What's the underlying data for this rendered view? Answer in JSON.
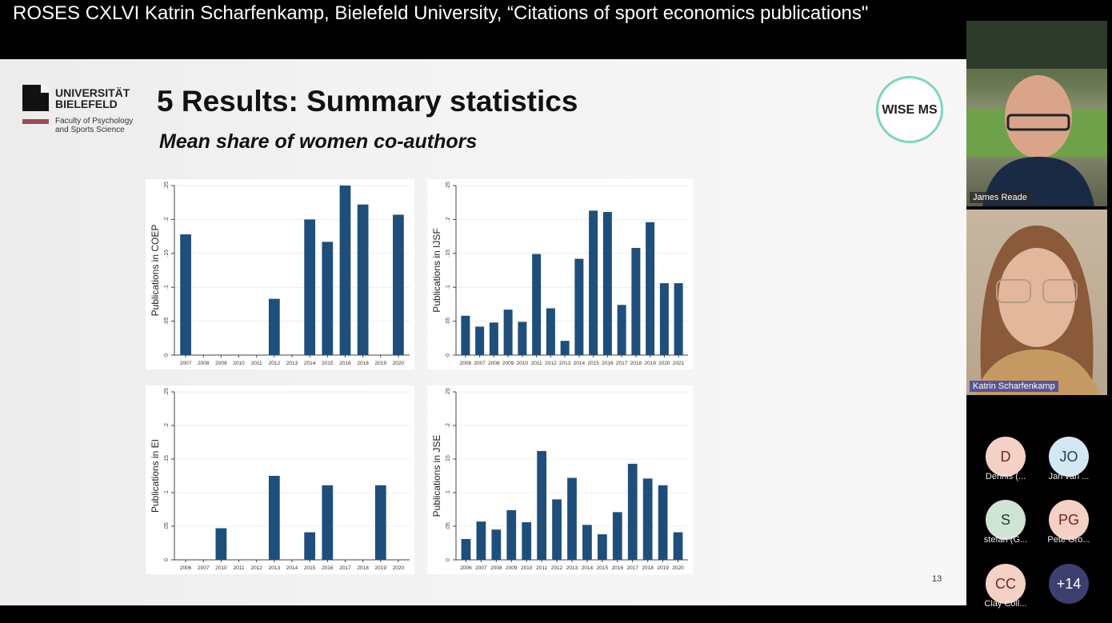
{
  "video_title": "ROSES CXLVI Katrin Scharfenkamp, Bielefeld University, “Citations of sport economics publications\"",
  "slide": {
    "logo_line1": "UNIVERSITÄT",
    "logo_line2": "BIELEFELD",
    "logo_sub1": "Faculty of Psychology",
    "logo_sub2": "and Sports Science",
    "title": "5 Results: Summary statistics",
    "subtitle": "Mean share of women co-authors",
    "badge": "WISE MS",
    "page_number": "13"
  },
  "participants": {
    "video": [
      {
        "name": "James Reade"
      },
      {
        "name": "Katrin Scharfenkamp"
      }
    ],
    "avatars": [
      {
        "initials": "D",
        "name": "Dennis (...",
        "color": "#f4d0c6",
        "text": "#6d2a1e"
      },
      {
        "initials": "JO",
        "name": "Jan van ...",
        "color": "#d4e8f4",
        "text": "#1e3c5a"
      },
      {
        "initials": "S",
        "name": "stefan (G...",
        "color": "#cfe3d6",
        "text": "#1f3a2a"
      },
      {
        "initials": "PG",
        "name": "Pete Gro...",
        "color": "#f4d0c6",
        "text": "#6d2a1e"
      },
      {
        "initials": "CC",
        "name": "Clay Coll...",
        "color": "#f4d0c6",
        "text": "#6d2a1e"
      },
      {
        "initials": "+14",
        "name": "",
        "color": "#3d3f6e",
        "text": "#ffffff"
      }
    ]
  },
  "colors": {
    "bar": "#1f4e7a"
  },
  "chart_data": [
    {
      "type": "bar",
      "ylabel": "Publications in COEP",
      "ylim": [
        0,
        0.25
      ],
      "yticks": [
        "0",
        ".05",
        ".1",
        ".15",
        ".2",
        ".25"
      ],
      "categories": [
        "2007",
        "2008",
        "2009",
        "2010",
        "2011",
        "2012",
        "2013",
        "2014",
        "2015",
        "2016",
        "2018",
        "2019",
        "2020"
      ],
      "values": [
        0.178,
        0,
        0,
        0,
        0,
        0.083,
        0,
        0.2,
        0.167,
        0.25,
        0.222,
        0,
        0.207
      ]
    },
    {
      "type": "bar",
      "ylabel": "Publications in IJSF",
      "ylim": [
        0,
        0.25
      ],
      "yticks": [
        "0",
        ".05",
        ".1",
        ".15",
        ".2",
        ".25"
      ],
      "categories": [
        "2006",
        "2007",
        "2008",
        "2009",
        "2010",
        "2011",
        "2012",
        "2013",
        "2014",
        "2015",
        "2016",
        "2017",
        "2018",
        "2019",
        "2020",
        "2021"
      ],
      "values": [
        0.058,
        0.042,
        0.048,
        0.067,
        0.049,
        0.149,
        0.069,
        0.021,
        0.142,
        0.213,
        0.211,
        0.074,
        0.158,
        0.196,
        0.106,
        0.106
      ]
    },
    {
      "type": "bar",
      "ylabel": "Publications in EI",
      "ylim": [
        0,
        0.25
      ],
      "yticks": [
        "0",
        ".05",
        ".1",
        ".15",
        ".2",
        ".25"
      ],
      "categories": [
        "2006",
        "2007",
        "2010",
        "2011",
        "2012",
        "2013",
        "2014",
        "2015",
        "2016",
        "2017",
        "2018",
        "2019",
        "2020"
      ],
      "values": [
        0,
        0,
        0.047,
        0,
        0,
        0.125,
        0,
        0.041,
        0.111,
        0,
        0,
        0.111,
        0
      ]
    },
    {
      "type": "bar",
      "ylabel": "Publications in JSE",
      "ylim": [
        0,
        0.25
      ],
      "yticks": [
        "0",
        ".05",
        ".1",
        ".15",
        ".2",
        ".25"
      ],
      "categories": [
        "2006",
        "2007",
        "2008",
        "2009",
        "2010",
        "2011",
        "2012",
        "2013",
        "2014",
        "2015",
        "2016",
        "2017",
        "2018",
        "2019",
        "2020"
      ],
      "values": [
        0.031,
        0.057,
        0.045,
        0.074,
        0.056,
        0.162,
        0.09,
        0.122,
        0.052,
        0.038,
        0.071,
        0.143,
        0.121,
        0.111,
        0.041
      ]
    }
  ]
}
